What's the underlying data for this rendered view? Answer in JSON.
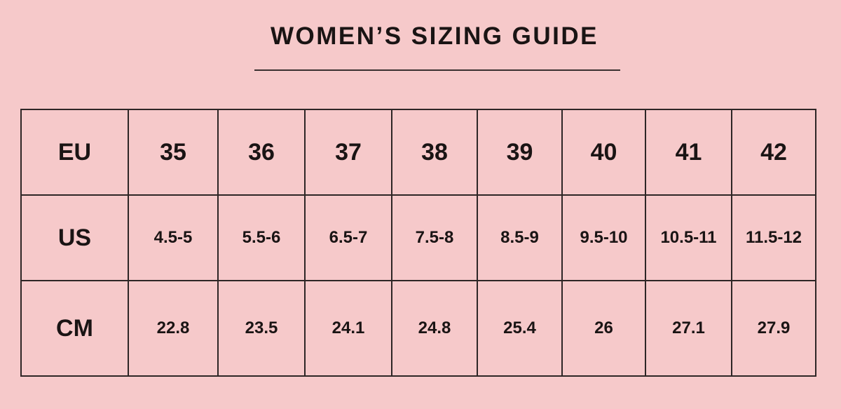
{
  "title": "WOMEN’S SIZING GUIDE",
  "rows": [
    {
      "label": "EU",
      "values": [
        "35",
        "36",
        "37",
        "38",
        "39",
        "40",
        "41",
        "42"
      ]
    },
    {
      "label": "US",
      "values": [
        "4.5-5",
        "5.5-6",
        "6.5-7",
        "7.5-8",
        "8.5-9",
        "9.5-10",
        "10.5-11",
        "11.5-12"
      ]
    },
    {
      "label": "CM",
      "values": [
        "22.8",
        "23.5",
        "24.1",
        "24.8",
        "25.4",
        "26",
        "27.1",
        "27.9"
      ]
    }
  ],
  "colors": {
    "background": "#f6c9ca",
    "text": "#1a1414"
  }
}
